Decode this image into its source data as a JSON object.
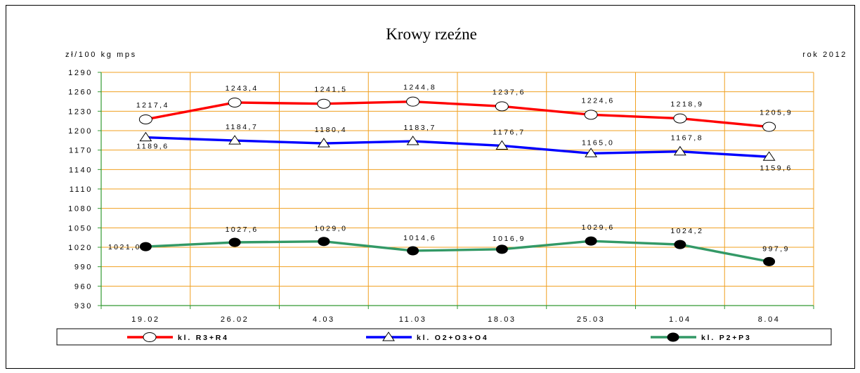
{
  "chart_data": {
    "type": "line",
    "title": "Krowy rzeźne",
    "ylabel": "zł/100 kg mps",
    "note_right": "rok 2012",
    "categories": [
      "19.02",
      "26.02",
      "4.03",
      "11.03",
      "18.03",
      "25.03",
      "1.04",
      "8.04"
    ],
    "y_ticks": [
      930,
      960,
      990,
      1020,
      1050,
      1080,
      1110,
      1140,
      1170,
      1200,
      1230,
      1260,
      1290
    ],
    "ylim": [
      930,
      1290
    ],
    "grid": true,
    "legend_position": "bottom",
    "colors": {
      "grid": "#f0a020",
      "axis": "#339933"
    },
    "series": [
      {
        "name": "kl. R3+R4",
        "color": "#ff0000",
        "marker": "open-circle",
        "values": [
          1217.4,
          1243.4,
          1241.5,
          1244.8,
          1237.6,
          1224.6,
          1218.9,
          1205.9
        ],
        "labels": [
          "1217,4",
          "1243,4",
          "1241,5",
          "1244,8",
          "1237,6",
          "1224,6",
          "1218,9",
          "1205,9"
        ]
      },
      {
        "name": "kl. O2+O3+O4",
        "color": "#0000ff",
        "marker": "open-triangle",
        "values": [
          1189.6,
          1184.7,
          1180.4,
          1183.7,
          1176.7,
          1165.0,
          1167.8,
          1159.6
        ],
        "labels": [
          "1189,6",
          "1184,7",
          "1180,4",
          "1183,7",
          "1176,7",
          "1165,0",
          "1167,8",
          "1159,6"
        ]
      },
      {
        "name": "kl. P2+P3",
        "color": "#339966",
        "marker": "filled-circle",
        "values": [
          1021.0,
          1027.6,
          1029.0,
          1014.6,
          1016.9,
          1029.6,
          1024.2,
          997.9
        ],
        "labels": [
          "1021,0",
          "1027,6",
          "1029,0",
          "1014,6",
          "1016,9",
          "1029,6",
          "1024,2",
          "997,9"
        ]
      }
    ]
  }
}
